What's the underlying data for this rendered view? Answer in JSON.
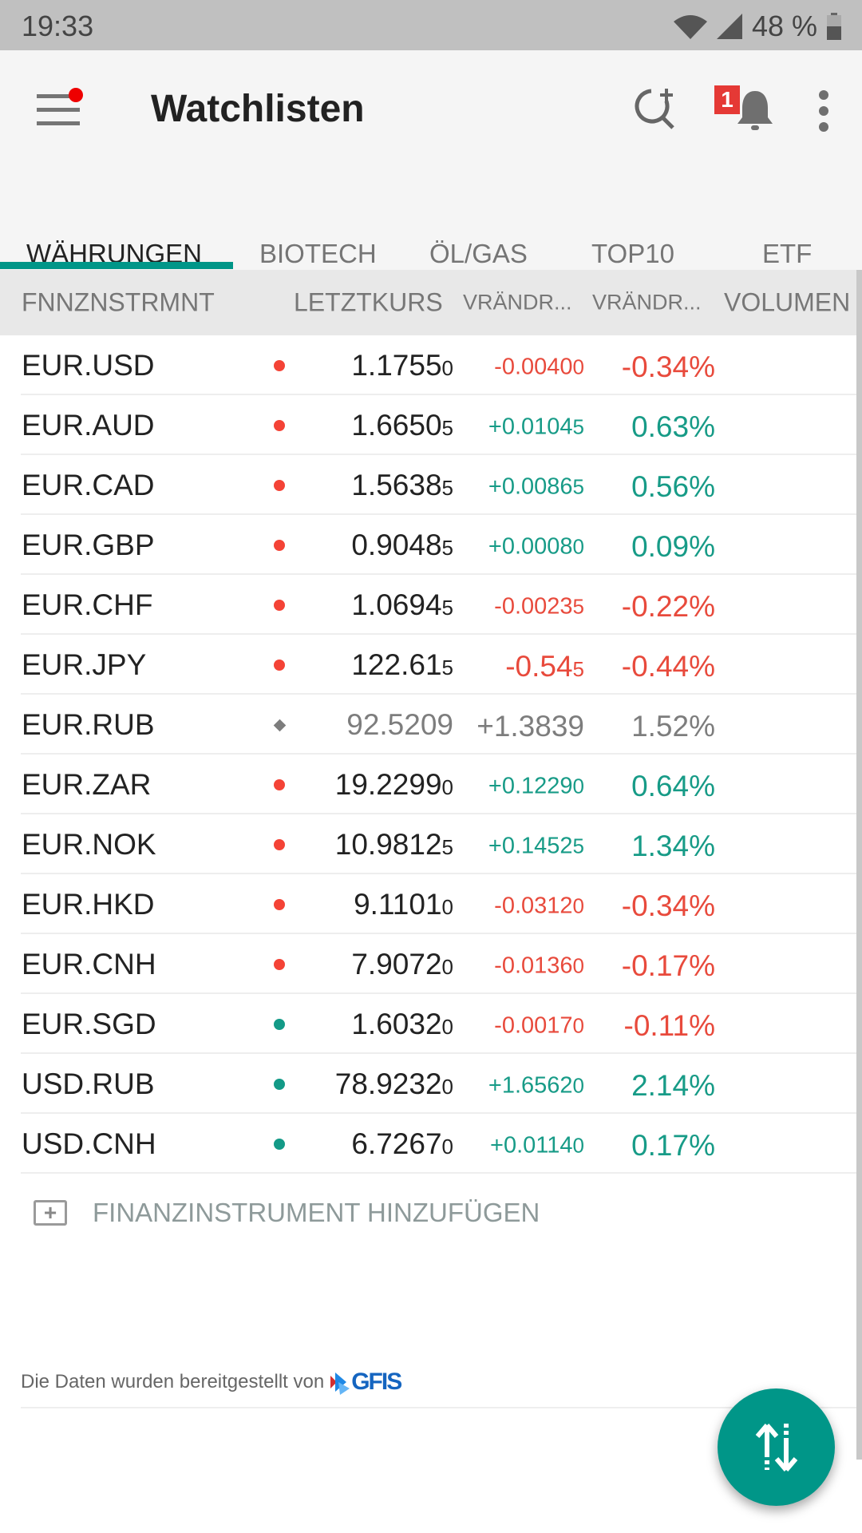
{
  "status_bar": {
    "time": "19:33",
    "battery": "48 %"
  },
  "app_bar": {
    "title": "Watchlisten",
    "notification_count": "1"
  },
  "tabs": [
    {
      "label": "WÄHRUNGEN",
      "active": true
    },
    {
      "label": "BIOTECH"
    },
    {
      "label": "ÖL/GAS"
    },
    {
      "label": "TOP10"
    },
    {
      "label": "ETF"
    }
  ],
  "table": {
    "headers": [
      "FNNZNSTRMNT",
      "LETZTKURS",
      "VRÄNDR...",
      "VRÄNDR...",
      "VOLUMEN"
    ],
    "rows": [
      {
        "name": "EUR.USD",
        "indicator": "red",
        "price": "1.1755",
        "price_suffix": "0",
        "change": "-0.0040",
        "change_suffix": "0",
        "pct": "-0.34%",
        "trend": "down"
      },
      {
        "name": "EUR.AUD",
        "indicator": "red",
        "price": "1.6650",
        "price_suffix": "5",
        "change": "+0.0104",
        "change_suffix": "5",
        "pct": "0.63%",
        "trend": "up"
      },
      {
        "name": "EUR.CAD",
        "indicator": "red",
        "price": "1.5638",
        "price_suffix": "5",
        "change": "+0.0086",
        "change_suffix": "5",
        "pct": "0.56%",
        "trend": "up"
      },
      {
        "name": "EUR.GBP",
        "indicator": "red",
        "price": "0.9048",
        "price_suffix": "5",
        "change": "+0.0008",
        "change_suffix": "0",
        "pct": "0.09%",
        "trend": "up"
      },
      {
        "name": "EUR.CHF",
        "indicator": "red",
        "price": "1.0694",
        "price_suffix": "5",
        "change": "-0.0023",
        "change_suffix": "5",
        "pct": "-0.22%",
        "trend": "down"
      },
      {
        "name": "EUR.JPY",
        "indicator": "red",
        "price": "122.61",
        "price_suffix": "5",
        "change": "-0.54",
        "change_suffix": "5",
        "pct": "-0.44%",
        "trend": "down",
        "big": true
      },
      {
        "name": "EUR.RUB",
        "indicator": "gray-diamond",
        "price": "92.5209",
        "price_suffix": "",
        "change": "+1.3839",
        "change_suffix": "",
        "pct": "1.52%",
        "trend": "stale",
        "big": true
      },
      {
        "name": "EUR.ZAR",
        "indicator": "red",
        "price": "19.2299",
        "price_suffix": "0",
        "change": "+0.1229",
        "change_suffix": "0",
        "pct": "0.64%",
        "trend": "up"
      },
      {
        "name": "EUR.NOK",
        "indicator": "red",
        "price": "10.9812",
        "price_suffix": "5",
        "change": "+0.1452",
        "change_suffix": "5",
        "pct": "1.34%",
        "trend": "up"
      },
      {
        "name": "EUR.HKD",
        "indicator": "red",
        "price": "9.1101",
        "price_suffix": "0",
        "change": "-0.0312",
        "change_suffix": "0",
        "pct": "-0.34%",
        "trend": "down"
      },
      {
        "name": "EUR.CNH",
        "indicator": "red",
        "price": "7.9072",
        "price_suffix": "0",
        "change": "-0.0136",
        "change_suffix": "0",
        "pct": "-0.17%",
        "trend": "down"
      },
      {
        "name": "EUR.SGD",
        "indicator": "teal",
        "price": "1.6032",
        "price_suffix": "0",
        "change": "-0.0017",
        "change_suffix": "0",
        "pct": "-0.11%",
        "trend": "down"
      },
      {
        "name": "USD.RUB",
        "indicator": "teal",
        "price": "78.9232",
        "price_suffix": "0",
        "change": "+1.6562",
        "change_suffix": "0",
        "pct": "2.14%",
        "trend": "up"
      },
      {
        "name": "USD.CNH",
        "indicator": "teal",
        "price": "6.7267",
        "price_suffix": "0",
        "change": "+0.0114",
        "change_suffix": "0",
        "pct": "0.17%",
        "trend": "up"
      }
    ]
  },
  "add_instrument_label": "FINANZINSTRUMENT HINZUFÜGEN",
  "footer": {
    "text": "Die Daten wurden bereitgestellt von",
    "logo": "GFIS"
  },
  "colors": {
    "accent": "#009688",
    "up": "#179b87",
    "down": "#e84a3c",
    "stale": "#7d7d7d",
    "indicator_red": "#f44336",
    "indicator_teal": "#139a87"
  },
  "icons": [
    "menu-icon",
    "search-add-icon",
    "bell-icon",
    "more-vert-icon",
    "add-box-icon",
    "sort-icon",
    "wifi-icon",
    "signal-icon",
    "battery-icon"
  ]
}
